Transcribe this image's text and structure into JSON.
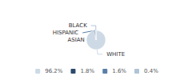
{
  "chart_data": {
    "type": "pie",
    "categories": [
      "WHITE",
      "ASIAN",
      "HISPANIC",
      "BLACK"
    ],
    "values": [
      96.2,
      1.8,
      1.6,
      0.4
    ],
    "value_labels": [
      "96.2%",
      "1.8%",
      "1.6%",
      "0.4%"
    ],
    "colors": [
      "#cdd9e5",
      "#2b4a6b",
      "#5a7fa8",
      "#b0c4d8"
    ],
    "legend": "bottom"
  }
}
